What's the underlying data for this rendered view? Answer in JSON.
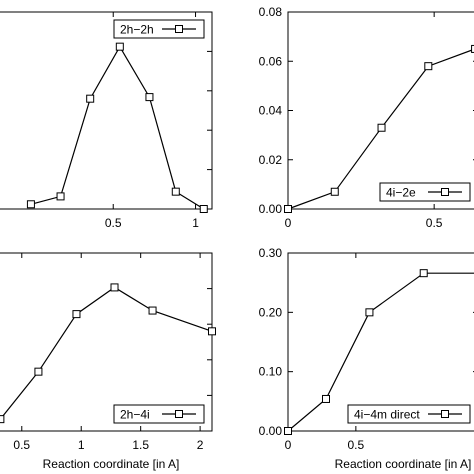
{
  "chart_data": [
    {
      "type": "line",
      "legend": "2h−2h",
      "legend_position": "top-right",
      "xlabel": "",
      "ylabel": "",
      "xlim": [
        -0.2,
        1.1
      ],
      "ylim": [
        0,
        0.25
      ],
      "xticks": [
        {
          "value": 0.5,
          "label": "0.5"
        },
        {
          "value": 1.0,
          "label": "1"
        }
      ],
      "yticks": [],
      "series": [
        {
          "x": [
            0.0,
            0.18,
            0.36,
            0.54,
            0.72,
            0.88,
            1.05
          ],
          "y": [
            0.006,
            0.016,
            0.14,
            0.206,
            0.142,
            0.022,
            0.0
          ]
        }
      ]
    },
    {
      "type": "line",
      "legend": "4i−2e",
      "legend_position": "bottom-right",
      "xlabel": "",
      "ylabel": "",
      "xlim": [
        0,
        0.65
      ],
      "ylim": [
        0,
        0.08
      ],
      "xticks": [
        {
          "value": 0,
          "label": "0"
        },
        {
          "value": 0.5,
          "label": "0.5"
        }
      ],
      "yticks": [
        {
          "value": 0,
          "label": "0.00"
        },
        {
          "value": 0.02,
          "label": "0.02"
        },
        {
          "value": 0.04,
          "label": "0.04"
        },
        {
          "value": 0.06,
          "label": "0.06"
        },
        {
          "value": 0.08,
          "label": "0.08"
        }
      ],
      "series": [
        {
          "x": [
            0.0,
            0.16,
            0.32,
            0.48,
            0.64
          ],
          "y": [
            0.0,
            0.007,
            0.033,
            0.058,
            0.065
          ]
        }
      ]
    },
    {
      "type": "line",
      "legend": "2h−4i",
      "legend_position": "bottom-right",
      "xlabel": "Reaction coordinate [in A]",
      "ylabel": "",
      "xlim": [
        0.3,
        2.1
      ],
      "ylim": [
        0,
        0.3
      ],
      "xticks": [
        {
          "value": 0.5,
          "label": "0.5"
        },
        {
          "value": 1.0,
          "label": "1"
        },
        {
          "value": 1.5,
          "label": "1.5"
        },
        {
          "value": 2.0,
          "label": "2"
        }
      ],
      "yticks": [],
      "series": [
        {
          "x": [
            0.32,
            0.64,
            0.96,
            1.28,
            1.6,
            2.1
          ],
          "y": [
            0.02,
            0.1,
            0.197,
            0.242,
            0.203,
            0.168
          ]
        }
      ]
    },
    {
      "type": "line",
      "legend": "4i−4m direct",
      "legend_position": "bottom-right",
      "xlabel": "Reaction coordinate [in A]",
      "ylabel": "",
      "xlim": [
        0,
        1.4
      ],
      "ylim": [
        0,
        0.3
      ],
      "xticks": [
        {
          "value": 0,
          "label": "0"
        },
        {
          "value": 0.5,
          "label": "0.5"
        }
      ],
      "yticks": [
        {
          "value": 0,
          "label": "0.00"
        },
        {
          "value": 0.1,
          "label": "0.10"
        },
        {
          "value": 0.2,
          "label": "0.20"
        },
        {
          "value": 0.3,
          "label": "0.30"
        }
      ],
      "series": [
        {
          "x": [
            0.0,
            0.28,
            0.6,
            1.0,
            1.4
          ],
          "y": [
            0.0,
            0.054,
            0.2,
            0.266,
            0.266
          ]
        }
      ]
    }
  ]
}
